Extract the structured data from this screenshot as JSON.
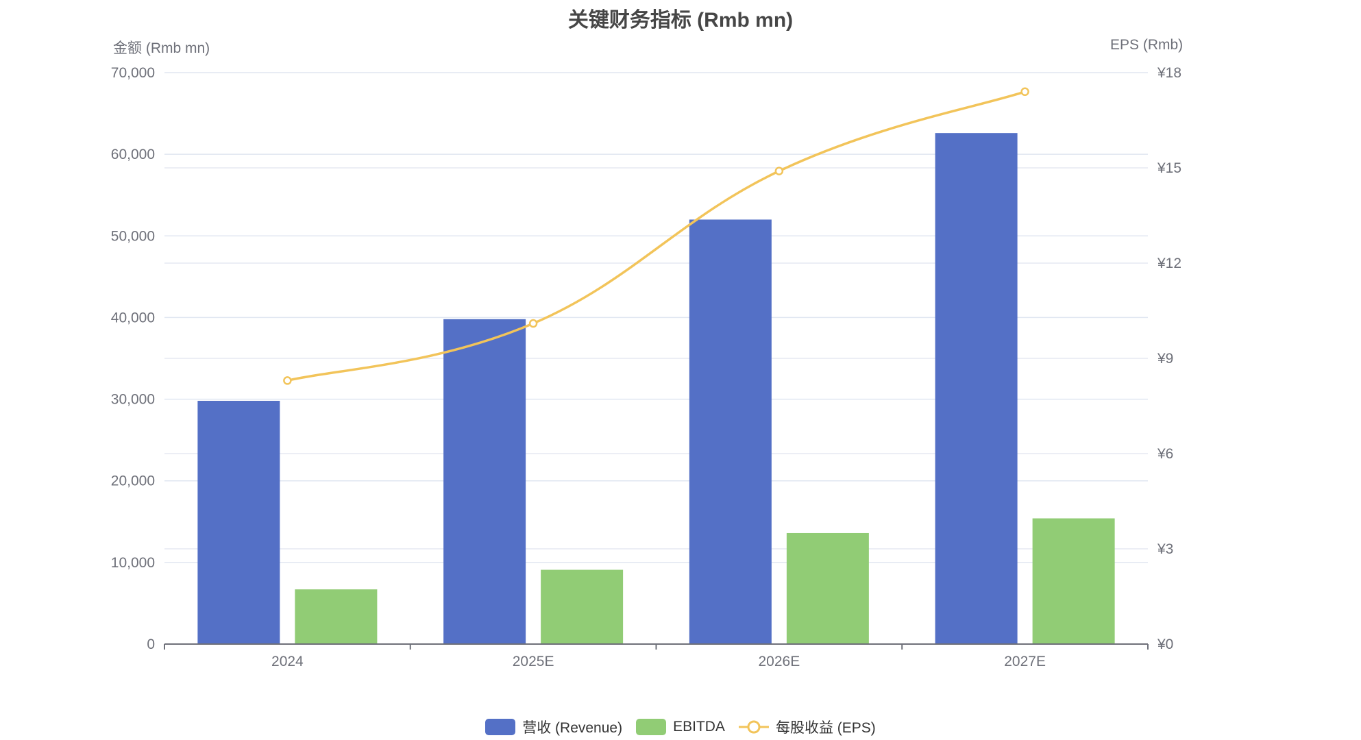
{
  "chart_data": {
    "type": "bar",
    "title": "关键财务指标 (Rmb mn)",
    "xlabel": "",
    "ylabel": "金额 (Rmb mn)",
    "y2label": "EPS (Rmb)",
    "categories": [
      "2024",
      "2025E",
      "2026E",
      "2027E"
    ],
    "ylim": [
      0,
      70000
    ],
    "y2lim": [
      0,
      18
    ],
    "yticks": [
      "0",
      "10,000",
      "20,000",
      "30,000",
      "40,000",
      "50,000",
      "60,000",
      "70,000"
    ],
    "y2ticks": [
      "¥0",
      "¥3",
      "¥6",
      "¥9",
      "¥12",
      "¥15",
      "¥18"
    ],
    "grid": true,
    "legend_position": "bottom",
    "series": [
      {
        "name": "营收 (Revenue)",
        "type": "bar",
        "axis": "left",
        "color": "#5470c6",
        "values": [
          29800,
          39800,
          52000,
          62600
        ]
      },
      {
        "name": "EBITDA",
        "type": "bar",
        "axis": "left",
        "color": "#91cc75",
        "values": [
          6700,
          9100,
          13600,
          15400
        ]
      },
      {
        "name": "每股收益 (EPS)",
        "type": "line",
        "axis": "right",
        "color": "#f2c45a",
        "smooth": true,
        "values": [
          8.3,
          10.1,
          14.9,
          17.4
        ]
      }
    ]
  },
  "legend": {
    "revenue": "营收 (Revenue)",
    "ebitda": "EBITDA",
    "eps": "每股收益 (EPS)"
  }
}
